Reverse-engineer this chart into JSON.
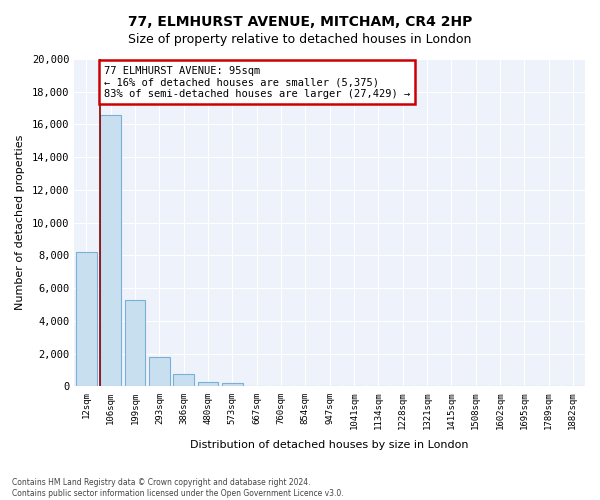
{
  "title": "77, ELMHURST AVENUE, MITCHAM, CR4 2HP",
  "subtitle": "Size of property relative to detached houses in London",
  "xlabel": "Distribution of detached houses by size in London",
  "ylabel": "Number of detached properties",
  "bar_labels": [
    "12sqm",
    "106sqm",
    "199sqm",
    "293sqm",
    "386sqm",
    "480sqm",
    "573sqm",
    "667sqm",
    "760sqm",
    "854sqm",
    "947sqm",
    "1041sqm",
    "1134sqm",
    "1228sqm",
    "1321sqm",
    "1415sqm",
    "1508sqm",
    "1602sqm",
    "1695sqm",
    "1789sqm",
    "1882sqm"
  ],
  "bar_values": [
    8200,
    16600,
    5300,
    1800,
    750,
    250,
    200,
    0,
    0,
    0,
    0,
    0,
    0,
    0,
    0,
    0,
    0,
    0,
    0,
    0,
    0
  ],
  "bar_color": "#c8dff0",
  "bar_edge_color": "#7ab0d4",
  "marker_line_color": "#8b0000",
  "annotation_title": "77 ELMHURST AVENUE: 95sqm",
  "annotation_line1": "← 16% of detached houses are smaller (5,375)",
  "annotation_line2": "83% of semi-detached houses are larger (27,429) →",
  "annotation_box_color": "#ffffff",
  "annotation_border_color": "#cc0000",
  "ylim": [
    0,
    20000
  ],
  "yticks": [
    0,
    2000,
    4000,
    6000,
    8000,
    10000,
    12000,
    14000,
    16000,
    18000,
    20000
  ],
  "footer_line1": "Contains HM Land Registry data © Crown copyright and database right 2024.",
  "footer_line2": "Contains public sector information licensed under the Open Government Licence v3.0.",
  "bg_color": "#ffffff",
  "plot_bg_color": "#eef2fa",
  "grid_color": "#ffffff",
  "title_fontsize": 10,
  "subtitle_fontsize": 9
}
